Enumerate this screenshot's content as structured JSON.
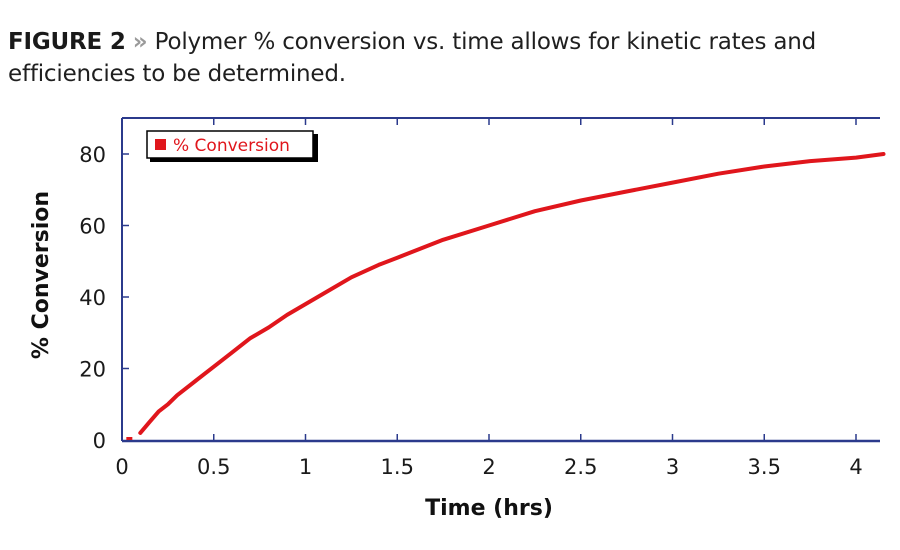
{
  "caption": {
    "figure_label": "FIGURE 2",
    "separator": "»",
    "text": "Polymer % conversion vs. time allows for kinetic rates and efficiencies to be determined."
  },
  "colors": {
    "series": "#e0161c",
    "axis": "#2b3a8c",
    "text": "#1a1a1a"
  },
  "chart_data": {
    "type": "line",
    "title": "Polymer % conversion vs. time allows for kinetic rates and efficiencies to be determined.",
    "xlabel": "Time (hrs)",
    "ylabel": "% Conversion",
    "xlim": [
      0,
      4.15
    ],
    "ylim": [
      0,
      90
    ],
    "x_ticks": [
      "0",
      "0.5",
      "1",
      "1.5",
      "2",
      "2.5",
      "3",
      "3.5",
      "4"
    ],
    "y_ticks": [
      "0",
      "20",
      "40",
      "60",
      "80"
    ],
    "grid": false,
    "legend": {
      "entries": [
        "% Conversion"
      ],
      "position": "upper left"
    },
    "series": [
      {
        "name": "% Conversion",
        "x": [
          0.04,
          0.1,
          0.15,
          0.2,
          0.25,
          0.3,
          0.4,
          0.5,
          0.6,
          0.7,
          0.8,
          0.9,
          1.0,
          1.1,
          1.25,
          1.4,
          1.5,
          1.75,
          2.0,
          2.25,
          2.5,
          2.75,
          3.0,
          3.25,
          3.5,
          3.75,
          4.0,
          4.15
        ],
        "values": [
          0,
          2,
          5,
          8,
          10,
          12.5,
          16.5,
          20.5,
          24.5,
          28.5,
          31.5,
          35,
          38,
          41,
          45.5,
          49,
          51,
          56,
          60,
          64,
          67,
          69.5,
          72,
          74.5,
          76.5,
          78,
          79,
          80
        ]
      }
    ]
  }
}
